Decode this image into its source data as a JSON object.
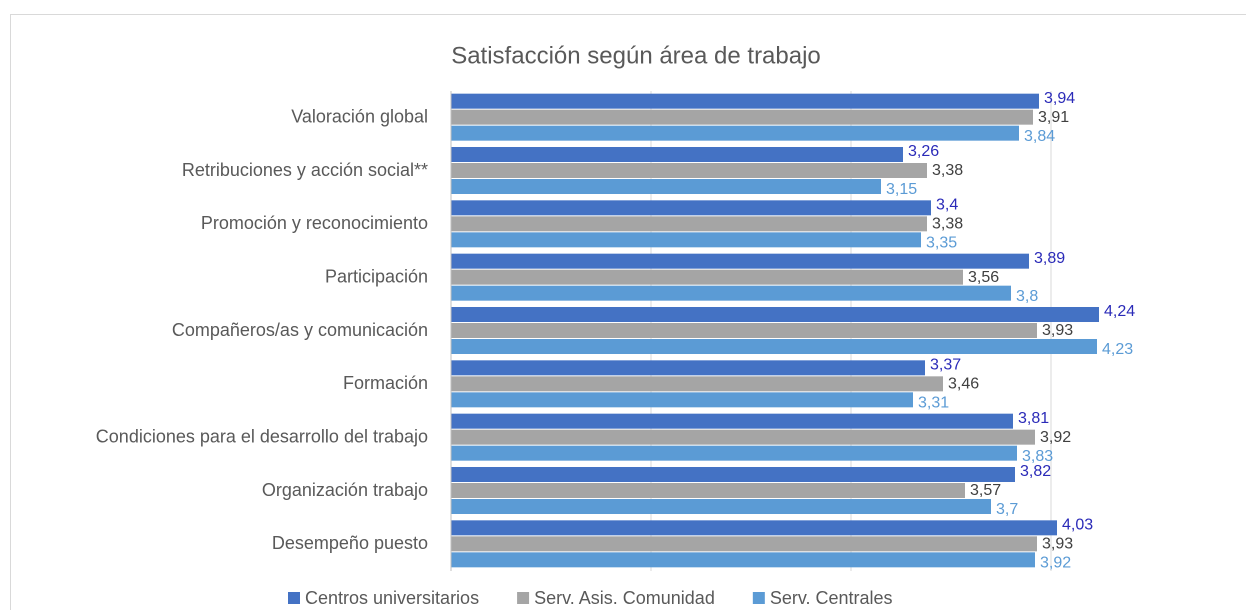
{
  "chart_data": {
    "type": "hbar",
    "title": "Satisfacción según área de trabajo",
    "categories": [
      "Valoración global",
      "Retribuciones y acción social**",
      "Promoción y reconocimiento",
      "Participación",
      "Compañeros/as y comunicación",
      "Formación",
      "Condiciones para el desarrollo del trabajo",
      "Organización trabajo",
      "Desempeño puesto"
    ],
    "series": [
      {
        "name": "Centros universitarios",
        "color": "#4472c4",
        "label_color": "#2a2ab8",
        "values": [
          3.94,
          3.26,
          3.4,
          3.89,
          4.24,
          3.37,
          3.81,
          3.82,
          4.03
        ],
        "value_labels": [
          "3,94",
          "3,26",
          "3,4",
          "3,89",
          "4,24",
          "3,37",
          "3,81",
          "3,82",
          "4,03"
        ]
      },
      {
        "name": "Serv. Asis. Comunidad",
        "color": "#a5a5a5",
        "label_color": "#404040",
        "values": [
          3.91,
          3.38,
          3.38,
          3.56,
          3.93,
          3.46,
          3.92,
          3.57,
          3.93
        ],
        "value_labels": [
          "3,91",
          "3,38",
          "3,38",
          "3,56",
          "3,93",
          "3,46",
          "3,92",
          "3,57",
          "3,93"
        ]
      },
      {
        "name": "Serv. Centrales",
        "color": "#5b9bd5",
        "label_color": "#5b9bd5",
        "values": [
          3.84,
          3.15,
          3.35,
          3.8,
          4.23,
          3.31,
          3.83,
          3.7,
          3.92
        ],
        "value_labels": [
          "3,84",
          "3,15",
          "3,35",
          "3,8",
          "4,23",
          "3,31",
          "3,83",
          "3,7",
          "3,92"
        ]
      }
    ],
    "xlim": [
      1,
      4.5
    ],
    "xticks": [
      1,
      2,
      3,
      4
    ],
    "grid": true,
    "legend": "bottom"
  }
}
